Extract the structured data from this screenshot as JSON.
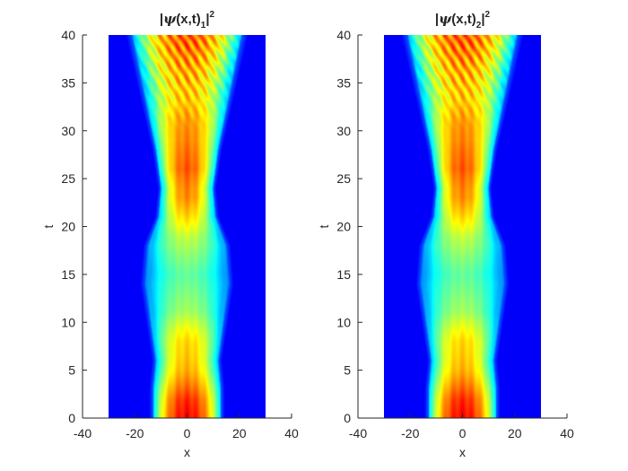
{
  "chart_data": [
    {
      "type": "heatmap",
      "title": {
        "prefix": "|",
        "psi": "ψ",
        "args": "(x,t)",
        "sub": "1",
        "close": "|",
        "sup": "2"
      },
      "xlabel": "x",
      "ylabel": "t",
      "xlim": [
        -40,
        40
      ],
      "ylim": [
        0,
        40
      ],
      "xticks": [
        -40,
        -20,
        0,
        20,
        40
      ],
      "yticks": [
        0,
        5,
        10,
        15,
        20,
        25,
        30,
        35,
        40
      ],
      "data_x_extent": [
        -30,
        30
      ],
      "colormap": "jet",
      "grid": false,
      "width_profile": {
        "t": [
          0,
          3,
          6,
          10,
          14,
          18,
          21,
          24,
          28,
          32,
          36,
          40
        ],
        "half_width": [
          13,
          13,
          12,
          14,
          16,
          15,
          11,
          10,
          12,
          15,
          18,
          21
        ]
      },
      "peak_profile": {
        "t": [
          0,
          2,
          5,
          8,
          11,
          15,
          19,
          23,
          26,
          29,
          33,
          37,
          40
        ],
        "peak": [
          1.0,
          0.97,
          0.83,
          0.74,
          0.56,
          0.5,
          0.6,
          0.86,
          0.95,
          0.84,
          0.78,
          0.84,
          0.88
        ]
      }
    },
    {
      "type": "heatmap",
      "title": {
        "prefix": "|",
        "psi": "ψ",
        "args": "(x,t)",
        "sub": "2",
        "close": "|",
        "sup": "2"
      },
      "xlabel": "x",
      "ylabel": "t",
      "xlim": [
        -40,
        40
      ],
      "ylim": [
        0,
        40
      ],
      "xticks": [
        -40,
        -20,
        0,
        20,
        40
      ],
      "yticks": [
        0,
        5,
        10,
        15,
        20,
        25,
        30,
        35,
        40
      ],
      "data_x_extent": [
        -30,
        30
      ],
      "colormap": "jet",
      "grid": false,
      "width_profile": {
        "t": [
          0,
          3,
          6,
          10,
          14,
          18,
          21,
          24,
          28,
          32,
          36,
          40
        ],
        "half_width": [
          13,
          13,
          12,
          14,
          16,
          15,
          11,
          10,
          12,
          15,
          18,
          21
        ]
      },
      "peak_profile": {
        "t": [
          0,
          2,
          5,
          8,
          11,
          15,
          19,
          23,
          26,
          29,
          33,
          37,
          40
        ],
        "peak": [
          1.0,
          0.97,
          0.83,
          0.74,
          0.56,
          0.5,
          0.6,
          0.86,
          0.95,
          0.84,
          0.78,
          0.84,
          0.88
        ]
      }
    }
  ]
}
